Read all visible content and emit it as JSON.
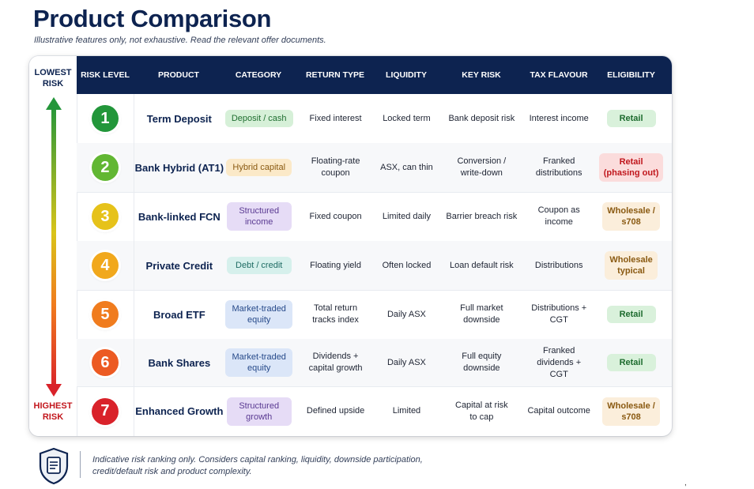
{
  "title": "Product Comparison",
  "subtitle": "Illustrative features only, not exhaustive. Read the relevant offer documents.",
  "scale": {
    "top_label": [
      "LOWEST",
      "RISK"
    ],
    "bottom_label": [
      "HIGHEST",
      "RISK"
    ]
  },
  "columns": [
    "RISK LEVEL",
    "PRODUCT",
    "CATEGORY",
    "RETURN TYPE",
    "LIQUIDITY",
    "KEY RISK",
    "TAX FLAVOUR",
    "ELIGIBILITY"
  ],
  "rows": [
    {
      "level": "1",
      "level_color": "#22963a",
      "product": "Term Deposit",
      "category": [
        "Deposit / cash"
      ],
      "category_bg": "#d6f0d8",
      "category_fg": "#1f6e30",
      "return_type": [
        "Fixed interest"
      ],
      "liquidity": [
        "Locked term"
      ],
      "key_risk": [
        "Bank deposit risk"
      ],
      "tax": [
        "Interest income"
      ],
      "eligibility": [
        "Retail"
      ],
      "elig_bg": "#d9f1db",
      "elig_fg": "#1d6b2e"
    },
    {
      "level": "2",
      "level_color": "#62b733",
      "product": "Bank Hybrid (AT1)",
      "category": [
        "Hybrid capital"
      ],
      "category_bg": "#fbe9c8",
      "category_fg": "#8a5a12",
      "return_type": [
        "Floating-rate",
        "coupon"
      ],
      "liquidity": [
        "ASX, can thin"
      ],
      "key_risk": [
        "Conversion /",
        "write-down"
      ],
      "tax": [
        "Franked",
        "distributions"
      ],
      "eligibility": [
        "Retail",
        "(phasing out)"
      ],
      "elig_bg": "#fbdcdc",
      "elig_fg": "#c0161c"
    },
    {
      "level": "3",
      "level_color": "#e6c21a",
      "product": "Bank-linked FCN",
      "category": [
        "Structured",
        "income"
      ],
      "category_bg": "#e6dcf6",
      "category_fg": "#5a3a92",
      "return_type": [
        "Fixed coupon"
      ],
      "liquidity": [
        "Limited daily"
      ],
      "key_risk": [
        "Barrier breach risk"
      ],
      "tax": [
        "Coupon as",
        "income"
      ],
      "eligibility": [
        "Wholesale /",
        "s708"
      ],
      "elig_bg": "#fbeedb",
      "elig_fg": "#8a5a12"
    },
    {
      "level": "4",
      "level_color": "#f1a81c",
      "product": "Private Credit",
      "category": [
        "Debt / credit"
      ],
      "category_bg": "#d6f0ec",
      "category_fg": "#1e6b63",
      "return_type": [
        "Floating yield"
      ],
      "liquidity": [
        "Often locked"
      ],
      "key_risk": [
        "Loan default risk"
      ],
      "tax": [
        "Distributions"
      ],
      "eligibility": [
        "Wholesale",
        "typical"
      ],
      "elig_bg": "#fbeedb",
      "elig_fg": "#8a5a12"
    },
    {
      "level": "5",
      "level_color": "#f07c1e",
      "product": "Broad ETF",
      "category": [
        "Market-traded",
        "equity"
      ],
      "category_bg": "#dbe6f8",
      "category_fg": "#274a8a",
      "return_type": [
        "Total return",
        "tracks index"
      ],
      "liquidity": [
        "Daily ASX"
      ],
      "key_risk": [
        "Full market",
        "downside"
      ],
      "tax": [
        "Distributions +",
        "CGT"
      ],
      "eligibility": [
        "Retail"
      ],
      "elig_bg": "#d9f1db",
      "elig_fg": "#1d6b2e"
    },
    {
      "level": "6",
      "level_color": "#ec5a22",
      "product": "Bank Shares",
      "category": [
        "Market-traded",
        "equity"
      ],
      "category_bg": "#dbe6f8",
      "category_fg": "#274a8a",
      "return_type": [
        "Dividends +",
        "capital growth"
      ],
      "liquidity": [
        "Daily ASX"
      ],
      "key_risk": [
        "Full equity",
        "downside"
      ],
      "tax": [
        "Franked",
        "dividends + CGT"
      ],
      "eligibility": [
        "Retail"
      ],
      "elig_bg": "#d9f1db",
      "elig_fg": "#1d6b2e"
    },
    {
      "level": "7",
      "level_color": "#d9222a",
      "product": "Enhanced Growth",
      "category": [
        "Structured",
        "growth"
      ],
      "category_bg": "#e6dcf6",
      "category_fg": "#5a3a92",
      "return_type": [
        "Defined upside"
      ],
      "liquidity": [
        "Limited"
      ],
      "key_risk": [
        "Capital at risk",
        "to cap"
      ],
      "tax": [
        "Capital outcome"
      ],
      "eligibility": [
        "Wholesale /",
        "s708"
      ],
      "elig_bg": "#fbeedb",
      "elig_fg": "#8a5a12"
    }
  ],
  "footer": {
    "icon": "document-shield-icon",
    "text": "Indicative risk ranking only. Considers capital ranking, liquidity, downside participation, credit/default risk and product complexity."
  },
  "corner_mark": ","
}
